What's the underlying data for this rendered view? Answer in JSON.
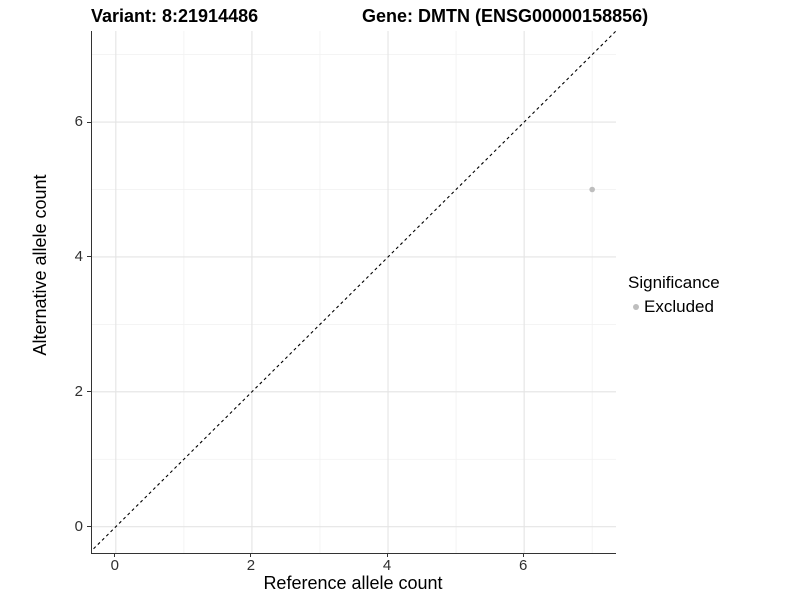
{
  "titles": {
    "variant": "Variant: 8:21914486",
    "gene": "Gene: DMTN (ENSG00000158856)"
  },
  "axes": {
    "x": {
      "label": "Reference allele count",
      "tick_labels": [
        "0",
        "2",
        "4",
        "6"
      ]
    },
    "y": {
      "label": "Alternative allele count",
      "tick_labels": [
        "0",
        "2",
        "4",
        "6"
      ]
    }
  },
  "legend": {
    "title": "Significance",
    "items": [
      {
        "label": "Excluded",
        "color": "#bebebe"
      }
    ]
  },
  "colors": {
    "axis_line": "#333333",
    "grid_major": "#e4e4e4",
    "grid_minor": "#f1f1f1",
    "reference_line": "#000000",
    "point": "#bebebe",
    "tick_text": "#303030",
    "title_text": "#000000"
  },
  "chart_data": {
    "type": "scatter",
    "titles": [
      "Variant: 8:21914486",
      "Gene: DMTN (ENSG00000158856)"
    ],
    "xlabel": "Reference allele count",
    "ylabel": "Alternative allele count",
    "xlim": [
      -0.35,
      7.35
    ],
    "ylim": [
      -0.39,
      7.35
    ],
    "x_major_ticks": [
      0,
      2,
      4,
      6
    ],
    "y_major_ticks": [
      0,
      2,
      4,
      6
    ],
    "x_minor_gridlines": [
      1,
      3,
      5,
      7
    ],
    "y_minor_gridlines": [
      1,
      3,
      5,
      7
    ],
    "grid": "on",
    "legend_position": "right",
    "legend_title": "Significance",
    "series": [
      {
        "name": "Excluded",
        "color": "#bebebe",
        "point_radius": 2.8,
        "points": [
          [
            7,
            5
          ]
        ]
      }
    ],
    "reference_line": {
      "kind": "identity y=x",
      "style": "dashed",
      "dash": "3,3",
      "color": "#000000",
      "from": [
        -0.39,
        -0.39
      ],
      "to": [
        7.35,
        7.35
      ]
    }
  }
}
